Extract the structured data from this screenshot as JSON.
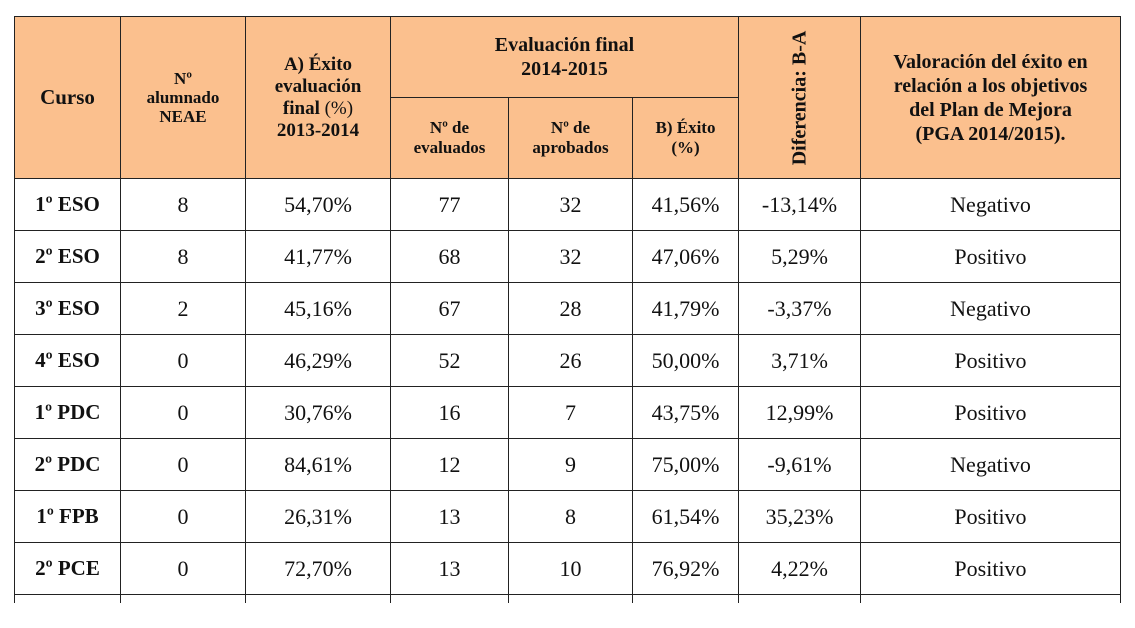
{
  "header": {
    "curso": "Curso",
    "neae": [
      "Nº",
      "alumnado",
      "NEAE"
    ],
    "exito_a": [
      "A) Éxito",
      "evaluación",
      "final",
      "(%)",
      "2013-2014"
    ],
    "evaluacion_final": [
      "Evaluación final",
      "2014-2015"
    ],
    "n_evaluados": [
      "Nº de",
      "evaluados"
    ],
    "n_aprobados": [
      "Nº de",
      "aprobados"
    ],
    "exito_b": [
      "B) Éxito",
      "(%)"
    ],
    "diferencia": "Diferencia: B-A",
    "valoracion": [
      "Valoración del éxito en",
      "relación a los objetivos",
      "del Plan de Mejora",
      "(PGA 2014/2015)."
    ]
  },
  "rows": [
    [
      "1º ESO",
      "8",
      "54,70%",
      "77",
      "32",
      "41,56%",
      "-13,14%",
      "Negativo"
    ],
    [
      "2º ESO",
      "8",
      "41,77%",
      "68",
      "32",
      "47,06%",
      "5,29%",
      "Positivo"
    ],
    [
      "3º ESO",
      "2",
      "45,16%",
      "67",
      "28",
      "41,79%",
      "-3,37%",
      "Negativo"
    ],
    [
      "4º ESO",
      "0",
      "46,29%",
      "52",
      "26",
      "50,00%",
      "3,71%",
      "Positivo"
    ],
    [
      "1º PDC",
      "0",
      "30,76%",
      "16",
      "7",
      "43,75%",
      "12,99%",
      "Positivo"
    ],
    [
      "2º PDC",
      "0",
      "84,61%",
      "12",
      "9",
      "75,00%",
      "-9,61%",
      "Negativo"
    ],
    [
      "1º FPB",
      "0",
      "26,31%",
      "13",
      "8",
      "61,54%",
      "35,23%",
      "Positivo"
    ],
    [
      "2º PCE",
      "0",
      "72,70%",
      "13",
      "10",
      "76,92%",
      "4,22%",
      "Positivo"
    ]
  ]
}
